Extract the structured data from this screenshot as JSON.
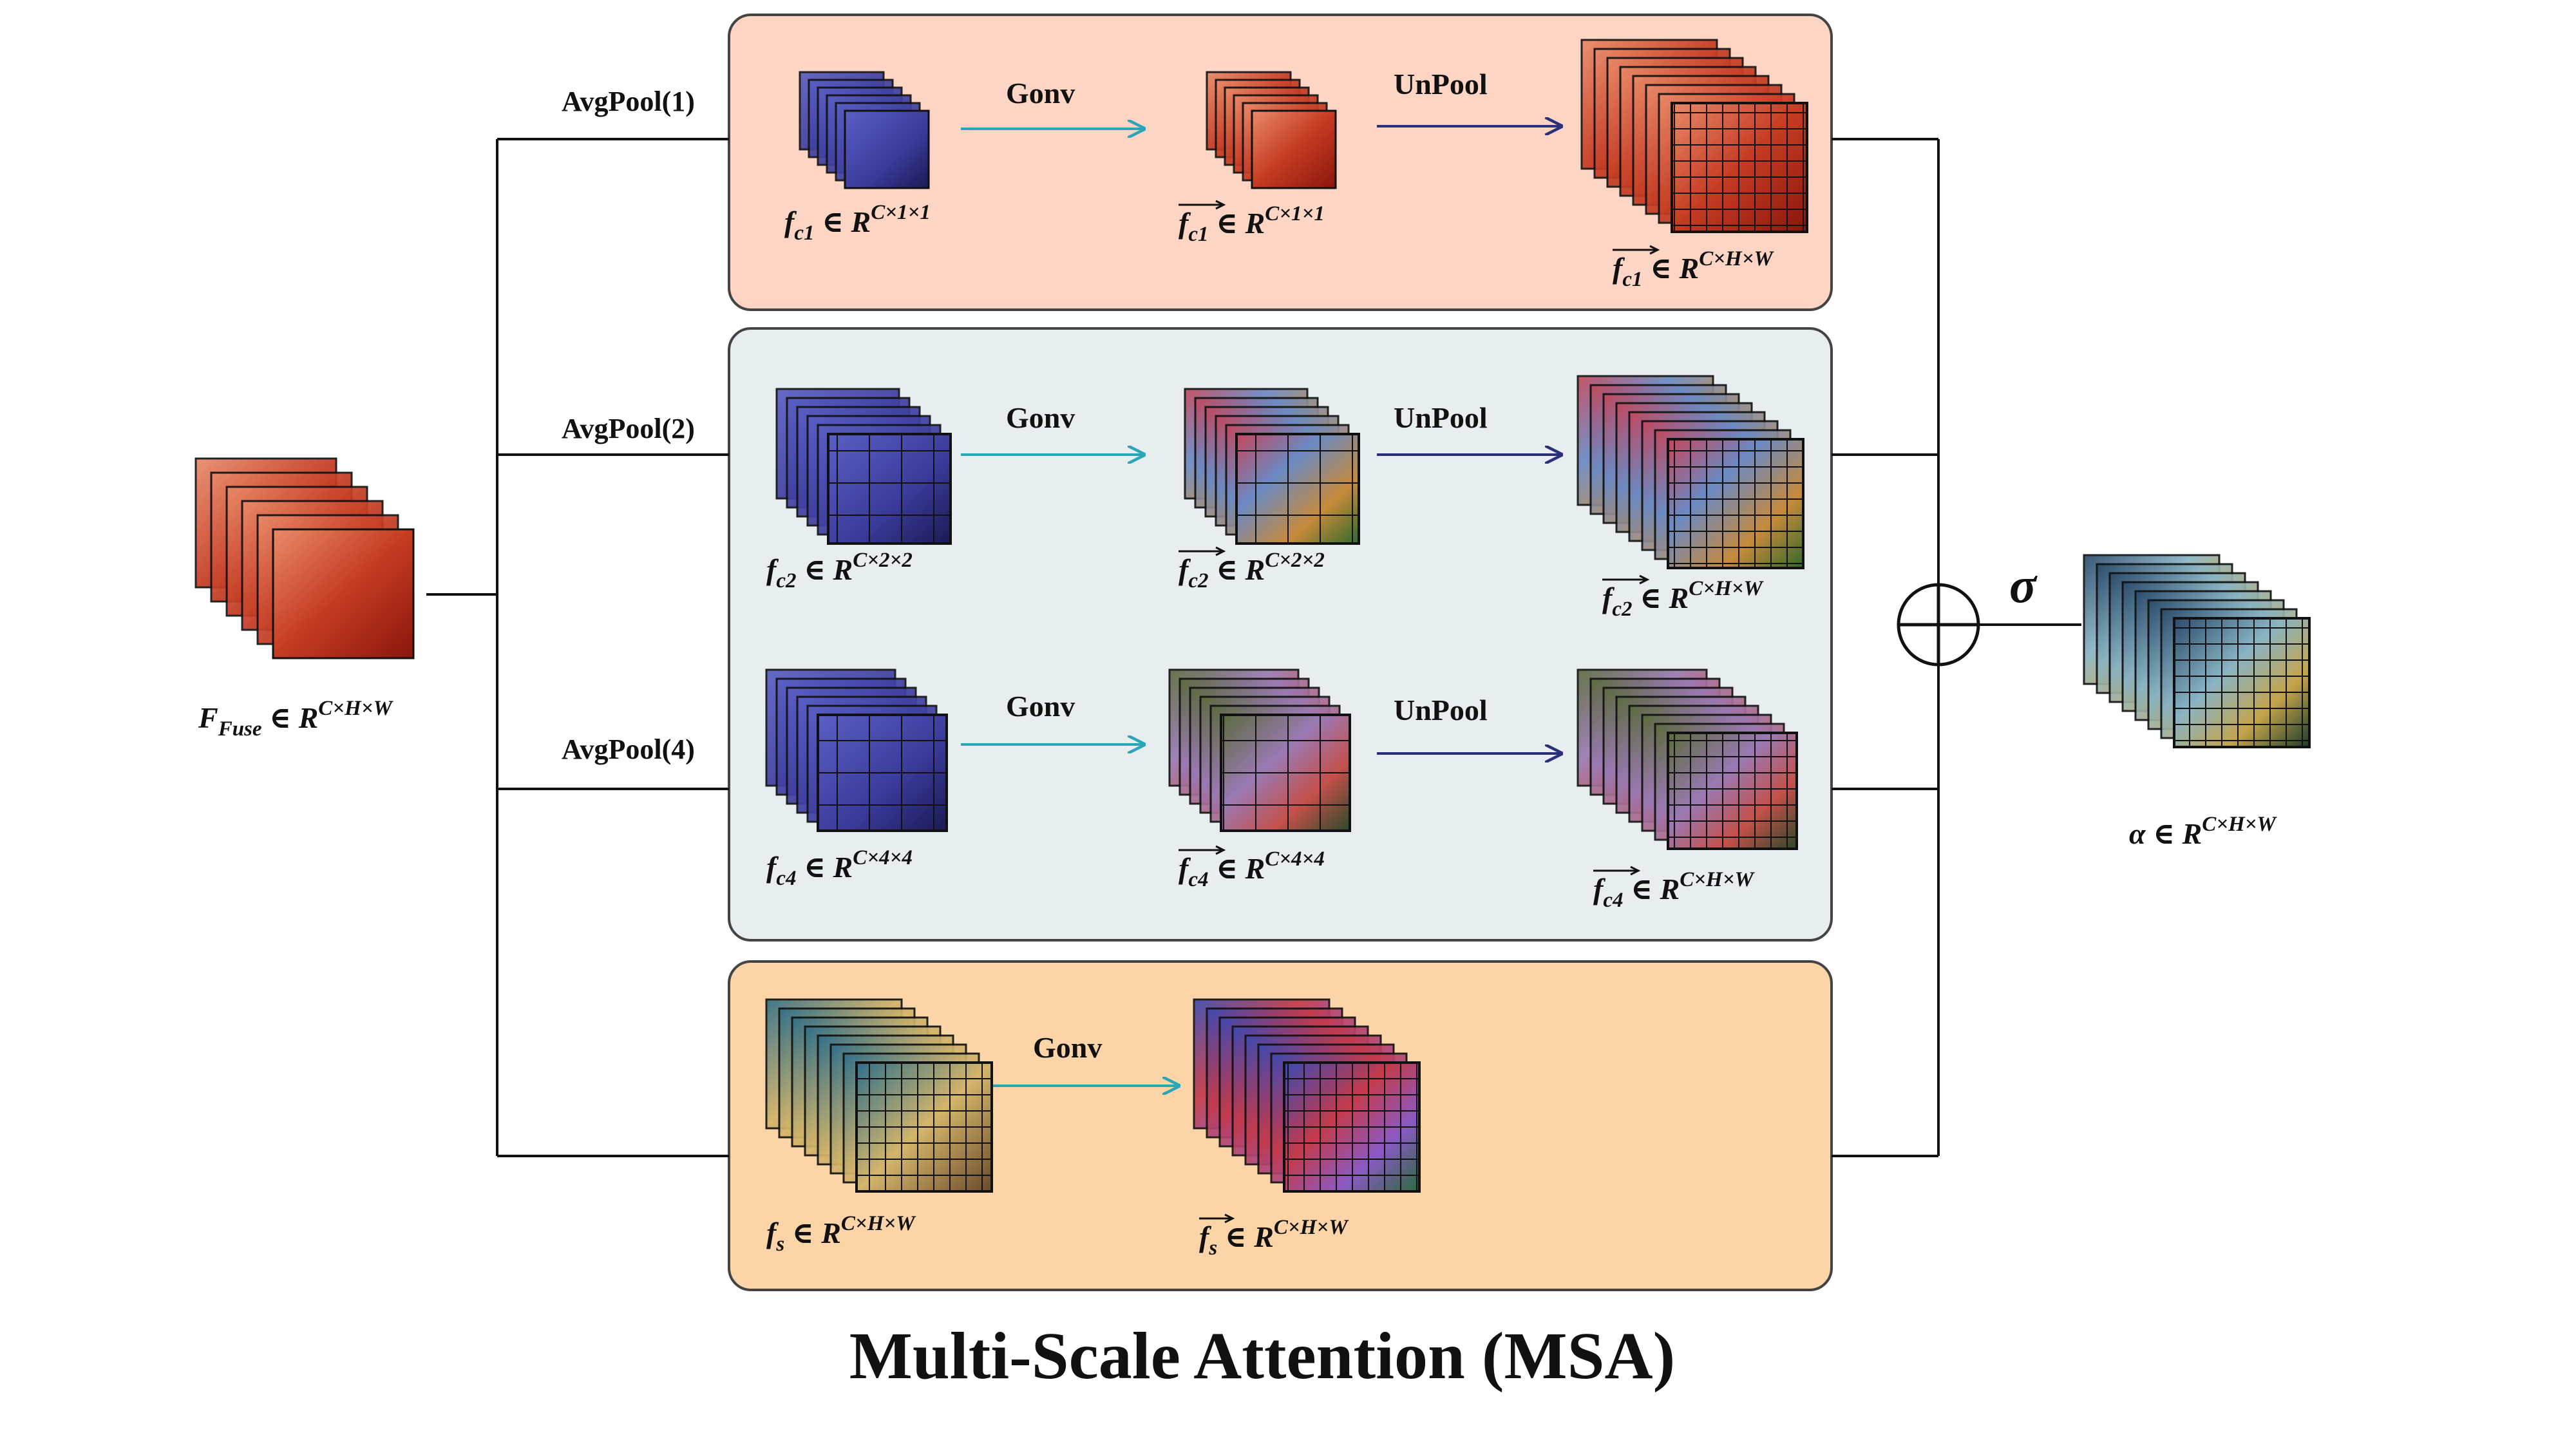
{
  "title": "Multi-Scale Attention (MSA)",
  "colors": {
    "panel_top": "#fcd5c4",
    "panel_middle": "#e8eef0",
    "panel_bottom": "#fbd5a8",
    "arrow_gonv": "#2aa6b8",
    "arrow_unpool": "#2c2f7a",
    "line": "#111111"
  },
  "input": {
    "name": "F",
    "sub": "Fuse",
    "space": "R",
    "dims": "C×H×W"
  },
  "branches": [
    {
      "pool": "AvgPool(1)",
      "input": {
        "name": "f",
        "sub": "c1",
        "dims": "C×1×1"
      },
      "gonv": "Gonv",
      "mid": {
        "name": "f",
        "sub": "c1",
        "dims": "C×1×1",
        "overline": true
      },
      "unpool": "UnPool",
      "out": {
        "name": "f",
        "sub": "c1",
        "dims": "C×H×W",
        "overline": true
      }
    },
    {
      "pool": "AvgPool(2)",
      "input": {
        "name": "f",
        "sub": "c2",
        "dims": "C×2×2"
      },
      "gonv": "Gonv",
      "mid": {
        "name": "f",
        "sub": "c2",
        "dims": "C×2×2",
        "overline": true
      },
      "unpool": "UnPool",
      "out": {
        "name": "f",
        "sub": "c2",
        "dims": "C×H×W",
        "overline": true
      }
    },
    {
      "pool": "AvgPool(4)",
      "input": {
        "name": "f",
        "sub": "c4",
        "dims": "C×4×4"
      },
      "gonv": "Gonv",
      "mid": {
        "name": "f",
        "sub": "c4",
        "dims": "C×4×4",
        "overline": true
      },
      "unpool": "UnPool",
      "out": {
        "name": "f",
        "sub": "c4",
        "dims": "C×H×W",
        "overline": true
      }
    },
    {
      "input": {
        "name": "f",
        "sub": "s",
        "dims": "C×H×W"
      },
      "gonv": "Gonv",
      "mid": {
        "name": "f",
        "sub": "s",
        "dims": "C×H×W",
        "overline": true
      }
    }
  ],
  "sum_symbol": "⊕",
  "activation": "σ",
  "output": {
    "name": "α",
    "space": "R",
    "dims": "C×H×W"
  },
  "element_of": "∈"
}
